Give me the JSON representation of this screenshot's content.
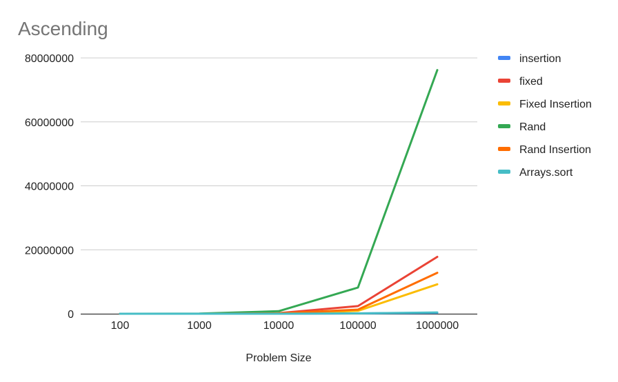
{
  "chart_data": {
    "type": "line",
    "title": "Ascending",
    "xlabel": "Problem Size",
    "ylabel": "",
    "categories": [
      "100",
      "1000",
      "10000",
      "100000",
      "1000000"
    ],
    "ylim": [
      0,
      80000000
    ],
    "yticks": [
      0,
      20000000,
      40000000,
      60000000,
      80000000
    ],
    "ytick_labels": [
      "0",
      "20000000",
      "40000000",
      "60000000",
      "80000000"
    ],
    "grid": true,
    "legend_position": "right",
    "series": [
      {
        "name": "insertion",
        "color": "#4285f4",
        "values": [
          0,
          0,
          10000,
          100000,
          300000
        ]
      },
      {
        "name": "fixed",
        "color": "#ea4335",
        "values": [
          0,
          10000,
          200000,
          2400000,
          17800000
        ]
      },
      {
        "name": "Fixed Insertion",
        "color": "#fbbc04",
        "values": [
          0,
          10000,
          100000,
          900000,
          9200000
        ]
      },
      {
        "name": "Rand",
        "color": "#34a853",
        "values": [
          0,
          50000,
          800000,
          8200000,
          76200000
        ]
      },
      {
        "name": "Rand Insertion",
        "color": "#ff6d01",
        "values": [
          0,
          10000,
          100000,
          1300000,
          12800000
        ]
      },
      {
        "name": "Arrays.sort",
        "color": "#46bdc6",
        "values": [
          0,
          0,
          10000,
          100000,
          400000
        ]
      }
    ]
  }
}
